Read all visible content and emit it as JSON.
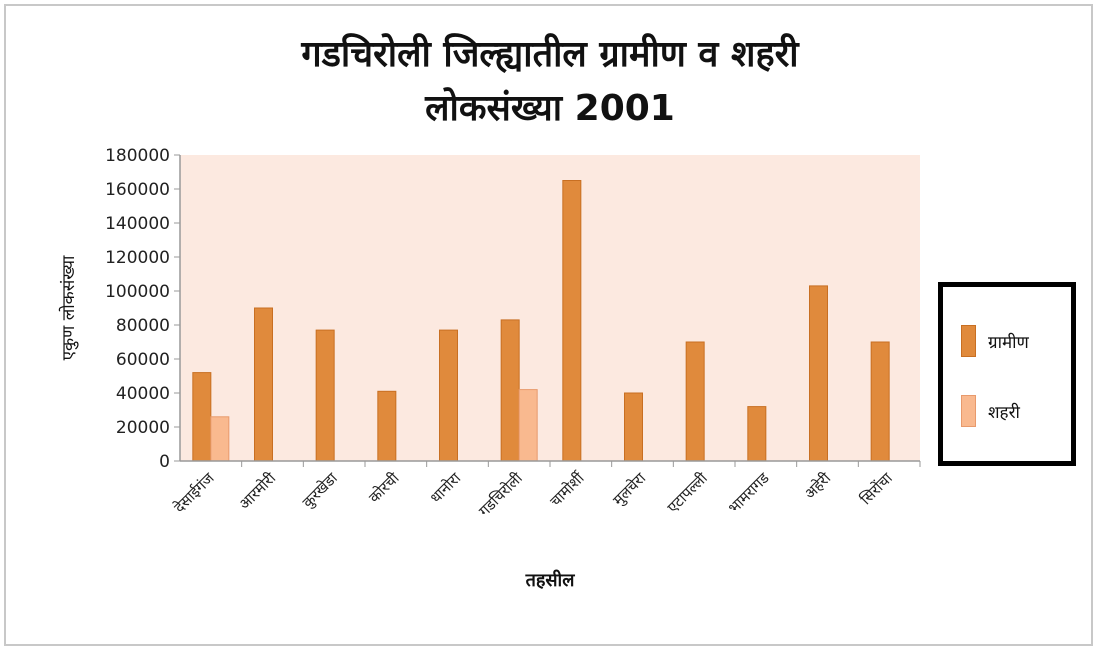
{
  "chart_data": {
    "type": "bar",
    "title_line1": "गडचिरोली जिल्ह्यातील ग्रामीण व शहरी",
    "title_line2": "लोकसंख्या 2001",
    "xlabel": "तहसील",
    "ylabel": "एकुण लोकसंख्या",
    "ylim": [
      0,
      180000
    ],
    "yticks": [
      0,
      20000,
      40000,
      60000,
      80000,
      100000,
      120000,
      140000,
      160000,
      180000
    ],
    "categories": [
      "देसाईगंज",
      "आरमोरी",
      "कुरखेडा",
      "कोरची",
      "धानोरा",
      "गडचिरोली",
      "चामोर्शी",
      "मुलचेरा",
      "एटापल्ली",
      "भामरागड",
      "अहेरी",
      "सिरोंचा"
    ],
    "series": [
      {
        "name": "ग्रामीण",
        "color": "#e08a3c",
        "values": [
          52000,
          90000,
          77000,
          41000,
          77000,
          83000,
          165000,
          40000,
          70000,
          32000,
          103000,
          70000
        ]
      },
      {
        "name": "शहरी",
        "color": "#f9b98f",
        "values": [
          26000,
          0,
          0,
          0,
          0,
          42000,
          0,
          0,
          0,
          0,
          0,
          0
        ]
      }
    ],
    "legend_position": "right",
    "plot_background": "#fce9e0",
    "grid": false
  }
}
